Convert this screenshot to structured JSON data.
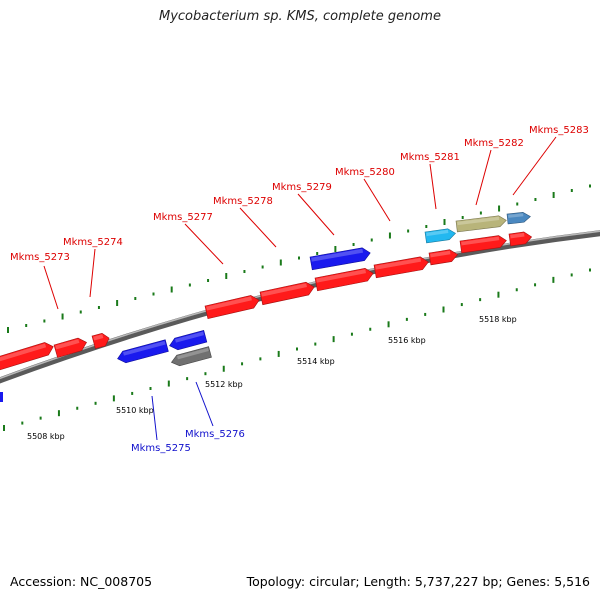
{
  "title": "Mycobacterium sp. KMS, complete genome",
  "footer": {
    "accession": "Accession: NC_008705",
    "topology": "Topology: circular; Length: 5,737,227 bp; Genes: 5,516"
  },
  "colors": {
    "forward_gene": "#ff1a1a",
    "reverse_gene": "#1a1aee",
    "label_forward": "#dd0000",
    "label_reverse": "#1010cc",
    "backbone": "#808080",
    "tick": "#1a7a1a",
    "gene_cyan": "#22b8f0",
    "gene_khaki": "#b8b47a",
    "gene_steel": "#4a88c0",
    "gene_gray": "#707070"
  },
  "scale": {
    "unit": "kbp",
    "labels": [
      "5508 kbp",
      "5510 kbp",
      "5512 kbp",
      "5514 kbp",
      "5516 kbp",
      "5518 kbp"
    ]
  },
  "genes": [
    {
      "id": "Mkms_5273",
      "strand": "+",
      "color": "forward_gene",
      "label_color": "label_forward"
    },
    {
      "id": "Mkms_5274",
      "strand": "+",
      "color": "forward_gene",
      "label_color": "label_forward"
    },
    {
      "id": "Mkms_5275",
      "strand": "-",
      "color": "reverse_gene",
      "label_color": "label_reverse"
    },
    {
      "id": "Mkms_5276",
      "strand": "-",
      "color": "gene_gray",
      "label_color": "label_reverse"
    },
    {
      "id": "Mkms_5277",
      "strand": "+",
      "color": "forward_gene",
      "label_color": "label_forward"
    },
    {
      "id": "Mkms_5278",
      "strand": "+",
      "color": "forward_gene",
      "label_color": "label_forward"
    },
    {
      "id": "Mkms_5279",
      "strand": "+",
      "color": "reverse_gene",
      "label_color": "label_forward"
    },
    {
      "id": "Mkms_5280",
      "strand": "+",
      "color": "forward_gene",
      "label_color": "label_forward"
    },
    {
      "id": "Mkms_5281",
      "strand": "+",
      "color": "gene_cyan",
      "label_color": "label_forward"
    },
    {
      "id": "Mkms_5282",
      "strand": "+",
      "color": "gene_khaki",
      "label_color": "label_forward"
    },
    {
      "id": "Mkms_5283",
      "strand": "+",
      "color": "gene_steel",
      "label_color": "label_forward"
    }
  ]
}
